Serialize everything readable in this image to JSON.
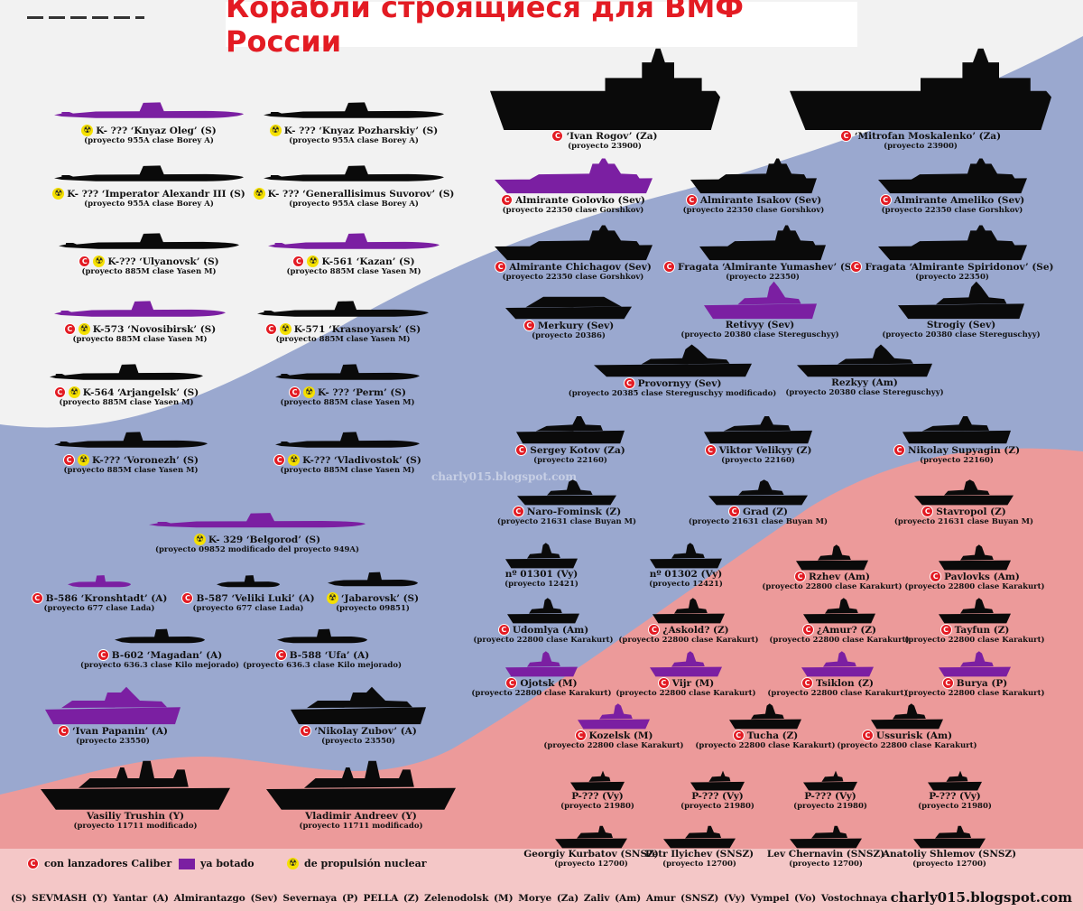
{
  "title": "Корабли строящиеся для ВМФ России",
  "watermark": "charly015.blogspot.com",
  "colors": {
    "title_red": "#e31b23",
    "launched_purple": "#7b1fa2",
    "built_black": "#0a0a0a",
    "flag_white": "#f2f2f2",
    "flag_blue": "#9aa8cf",
    "flag_red": "#ec9a9a"
  },
  "items": [
    {
      "name": "K- ??? ‘Knyaz Oleg’ (S)",
      "project": "(proyecto 955A clase Borey A)",
      "caliber": false,
      "nuclear": true,
      "launched": true,
      "shape": "sub"
    },
    {
      "name": "K- ??? ‘Knyaz Pozharskiy’ (S)",
      "project": "(proyecto 955A clase Borey A)",
      "caliber": false,
      "nuclear": true,
      "launched": false,
      "shape": "sub"
    },
    {
      "name": "K- ??? ‘Imperator Alexandr III (S)",
      "project": "(proyecto 955A clase Borey A)",
      "caliber": false,
      "nuclear": true,
      "launched": false,
      "shape": "sub"
    },
    {
      "name": "K- ??? ‘Generallisimus Suvorov’ (S)",
      "project": "(proyecto 955A clase Borey A)",
      "caliber": false,
      "nuclear": true,
      "launched": false,
      "shape": "sub"
    },
    {
      "name": "K-??? ‘Ulyanovsk’ (S)",
      "project": "(proyecto 885M clase Yasen M)",
      "caliber": true,
      "nuclear": true,
      "launched": false,
      "shape": "sub"
    },
    {
      "name": "K-561 ‘Kazan’ (S)",
      "project": "(proyecto 885M clase Yasen M)",
      "caliber": true,
      "nuclear": true,
      "launched": true,
      "shape": "sub"
    },
    {
      "name": "K-573 ‘Novosibirsk’ (S)",
      "project": "(proyecto 885M clase Yasen M)",
      "caliber": true,
      "nuclear": true,
      "launched": true,
      "shape": "sub"
    },
    {
      "name": "K-571 ‘Krasnoyarsk’ (S)",
      "project": "(proyecto 885M clase Yasen M)",
      "caliber": true,
      "nuclear": true,
      "launched": false,
      "shape": "sub"
    },
    {
      "name": "K-564 ‘Arjangelsk’ (S)",
      "project": "(proyecto 885M clase Yasen M)",
      "caliber": true,
      "nuclear": true,
      "launched": false,
      "shape": "sub"
    },
    {
      "name": "K- ??? ‘Perm’ (S)",
      "project": "(proyecto 885M clase Yasen M)",
      "caliber": true,
      "nuclear": true,
      "launched": false,
      "shape": "sub"
    },
    {
      "name": "K-??? ‘Voronezh’ (S)",
      "project": "(proyecto 885M clase Yasen M)",
      "caliber": true,
      "nuclear": true,
      "launched": false,
      "shape": "sub"
    },
    {
      "name": "K-??? ‘Vladivostok’ (S)",
      "project": "(proyecto 885M clase Yasen M)",
      "caliber": true,
      "nuclear": true,
      "launched": false,
      "shape": "sub"
    },
    {
      "name": "K- 329 ‘Belgorod’ (S)",
      "project": "(proyecto 09852 modificado del proyecto 949A)",
      "caliber": false,
      "nuclear": true,
      "launched": true,
      "shape": "sub"
    },
    {
      "name": "B-586 ‘Kronshtadt’ (A)",
      "project": "(proyecto 677 clase Lada)",
      "caliber": true,
      "nuclear": false,
      "launched": true,
      "shape": "ssk"
    },
    {
      "name": "B-587 ‘Veliki Luki’ (A)",
      "project": "(proyecto 677 clase Lada)",
      "caliber": true,
      "nuclear": false,
      "launched": false,
      "shape": "ssk"
    },
    {
      "name": "‘Jabarovsk’ (S)",
      "project": "(proyecto 09851)",
      "caliber": false,
      "nuclear": true,
      "launched": false,
      "shape": "ssk"
    },
    {
      "name": "B-602 ‘Magadan’ (A)",
      "project": "(proyecto 636.3 clase Kilo mejorado)",
      "caliber": true,
      "nuclear": false,
      "launched": false,
      "shape": "ssk"
    },
    {
      "name": "B-588 ‘Ufa’ (A)",
      "project": "(proyecto 636.3 clase Kilo mejorado)",
      "caliber": true,
      "nuclear": false,
      "launched": false,
      "shape": "ssk"
    },
    {
      "name": "‘Ivan Papanin’ (A)",
      "project": "(proyecto 23550)",
      "caliber": true,
      "nuclear": false,
      "launched": true,
      "shape": "patrol"
    },
    {
      "name": "‘Nikolay Zubov’ (A)",
      "project": "(proyecto 23550)",
      "caliber": true,
      "nuclear": false,
      "launched": false,
      "shape": "patrol"
    },
    {
      "name": "Vasiliy Trushin (Y)",
      "project": "(proyecto 11711 modificado)",
      "caliber": false,
      "nuclear": false,
      "launched": false,
      "shape": "lst"
    },
    {
      "name": "Vladimir Andreev (Y)",
      "project": "(proyecto 11711 modificado)",
      "caliber": false,
      "nuclear": false,
      "launched": false,
      "shape": "lst"
    },
    {
      "name": "‘Ivan Rogov’ (Za)",
      "project": "(proyecto 23900)",
      "caliber": true,
      "nuclear": false,
      "launched": false,
      "shape": "lhd"
    },
    {
      "name": "‘Mitrofan Moskalenko’ (Za)",
      "project": "(proyecto 23900)",
      "caliber": true,
      "nuclear": false,
      "launched": false,
      "shape": "lhd"
    },
    {
      "name": "Almirante Golovko (Sev)",
      "project": "(proyecto 22350 clase Gorshkov)",
      "caliber": true,
      "nuclear": false,
      "launched": true,
      "shape": "frigate"
    },
    {
      "name": "Almirante Isakov (Sev)",
      "project": "(proyecto 22350 clase Gorshkov)",
      "caliber": true,
      "nuclear": false,
      "launched": false,
      "shape": "frigate"
    },
    {
      "name": "Almirante Ameliko (Sev)",
      "project": "(proyecto 22350 clase Gorshkov)",
      "caliber": true,
      "nuclear": false,
      "launched": false,
      "shape": "frigate"
    },
    {
      "name": "Almirante Chichagov (Sev)",
      "project": "(proyecto 22350 clase Gorshkov)",
      "caliber": true,
      "nuclear": false,
      "launched": false,
      "shape": "frigate"
    },
    {
      "name": "Fragata ‘Almirante Yumashev’ (Se)",
      "project": "(proyecto 22350)",
      "caliber": true,
      "nuclear": false,
      "launched": false,
      "shape": "frigate"
    },
    {
      "name": "Fragata ‘Almirante Spiridonov’ (Se)",
      "project": "(proyecto 22350)",
      "caliber": true,
      "nuclear": false,
      "launched": false,
      "shape": "frigate"
    },
    {
      "name": "Merkury (Sev)",
      "project": "(proyecto 20386)",
      "caliber": true,
      "nuclear": false,
      "launched": false,
      "shape": "stealth"
    },
    {
      "name": "Retivyy (Sev)",
      "project": "(proyecto 20380 clase Stereguschyy)",
      "caliber": false,
      "nuclear": false,
      "launched": true,
      "shape": "corvette"
    },
    {
      "name": "Strogiy (Sev)",
      "project": "(proyecto 20380 clase Stereguschyy)",
      "caliber": false,
      "nuclear": false,
      "launched": false,
      "shape": "corvette"
    },
    {
      "name": "Provornyy (Sev)",
      "project": "(proyecto 20385 clase Stereguschyy modificado)",
      "caliber": true,
      "nuclear": false,
      "launched": false,
      "shape": "corvette"
    },
    {
      "name": "Rezkyy (Am)",
      "project": "(proyecto 20380 clase Stereguschyy)",
      "caliber": false,
      "nuclear": false,
      "launched": false,
      "shape": "corvette"
    },
    {
      "name": "Sergey Kotov (Za)",
      "project": "(proyecto 22160)",
      "caliber": true,
      "nuclear": false,
      "launched": false,
      "shape": "opv"
    },
    {
      "name": "Viktor Velikyy (Z)",
      "project": "(proyecto 22160)",
      "caliber": true,
      "nuclear": false,
      "launched": false,
      "shape": "opv"
    },
    {
      "name": "Nikolay Supyagin (Z)",
      "project": "(proyecto 22160)",
      "caliber": true,
      "nuclear": false,
      "launched": false,
      "shape": "opv"
    },
    {
      "name": "Naro-Fominsk (Z)",
      "project": "(proyecto 21631 clase Buyan M)",
      "caliber": true,
      "nuclear": false,
      "launched": false,
      "shape": "small"
    },
    {
      "name": "Grad (Z)",
      "project": "(proyecto 21631 clase Buyan M)",
      "caliber": true,
      "nuclear": false,
      "launched": false,
      "shape": "small"
    },
    {
      "name": "Stavropol (Z)",
      "project": "(proyecto 21631 clase Buyan M)",
      "caliber": true,
      "nuclear": false,
      "launched": false,
      "shape": "small"
    },
    {
      "name": "nº 01301 (Vy)",
      "project": "(proyecto 12421)",
      "caliber": false,
      "nuclear": false,
      "launched": false,
      "shape": "small"
    },
    {
      "name": "nº 01302 (Vy)",
      "project": "(proyecto 12421)",
      "caliber": false,
      "nuclear": false,
      "launched": false,
      "shape": "small"
    },
    {
      "name": "Rzhev (Am)",
      "project": "(proyecto 22800 clase Karakurt)",
      "caliber": true,
      "nuclear": false,
      "launched": false,
      "shape": "small"
    },
    {
      "name": "Pavlovks (Am)",
      "project": "(proyecto 22800 clase Karakurt)",
      "caliber": true,
      "nuclear": false,
      "launched": false,
      "shape": "small"
    },
    {
      "name": "Udomlya (Am)",
      "project": "(proyecto 22800 clase Karakurt)",
      "caliber": true,
      "nuclear": false,
      "launched": false,
      "shape": "small"
    },
    {
      "name": "¿Askold? (Z)",
      "project": "(proyecto 22800 clase Karakurt)",
      "caliber": true,
      "nuclear": false,
      "launched": false,
      "shape": "small"
    },
    {
      "name": "¿Amur? (Z)",
      "project": "(proyecto 22800 clase Karakurt)",
      "caliber": true,
      "nuclear": false,
      "launched": false,
      "shape": "small"
    },
    {
      "name": "Tayfun (Z)",
      "project": "(proyecto 22800 clase Karakurt)",
      "caliber": true,
      "nuclear": false,
      "launched": false,
      "shape": "small"
    },
    {
      "name": "Ojotsk (M)",
      "project": "(proyecto 22800 clase Karakurt)",
      "caliber": true,
      "nuclear": false,
      "launched": true,
      "shape": "small"
    },
    {
      "name": "Vijr (M)",
      "project": "(proyecto 22800 clase Karakurt)",
      "caliber": true,
      "nuclear": false,
      "launched": true,
      "shape": "small"
    },
    {
      "name": "Tsiklon (Z)",
      "project": "(proyecto 22800 clase Karakurt)",
      "caliber": true,
      "nuclear": false,
      "launched": true,
      "shape": "small"
    },
    {
      "name": "Burya (P)",
      "project": "(proyecto 22800 clase Karakurt)",
      "caliber": true,
      "nuclear": false,
      "launched": true,
      "shape": "small"
    },
    {
      "name": "Kozelsk (M)",
      "project": "(proyecto 22800 clase Karakurt)",
      "caliber": true,
      "nuclear": false,
      "launched": true,
      "shape": "small"
    },
    {
      "name": "Tucha (Z)",
      "project": "(proyecto 22800 clase Karakurt)",
      "caliber": true,
      "nuclear": false,
      "launched": false,
      "shape": "small"
    },
    {
      "name": "Ussurisk (Am)",
      "project": "(proyecto 22800 clase Karakurt)",
      "caliber": true,
      "nuclear": false,
      "launched": false,
      "shape": "small"
    },
    {
      "name": "P-??? (Vy)",
      "project": "(proyecto 21980)",
      "caliber": false,
      "nuclear": false,
      "launched": false,
      "shape": "boat"
    },
    {
      "name": "P-??? (Vy)",
      "project": "(proyecto 21980)",
      "caliber": false,
      "nuclear": false,
      "launched": false,
      "shape": "boat"
    },
    {
      "name": "P-??? (Vy)",
      "project": "(proyecto 21980)",
      "caliber": false,
      "nuclear": false,
      "launched": false,
      "shape": "boat"
    },
    {
      "name": "P-??? (Vy)",
      "project": "(proyecto 21980)",
      "caliber": false,
      "nuclear": false,
      "launched": false,
      "shape": "boat"
    },
    {
      "name": "Georgiy Kurbatov (SNSZ)",
      "project": "(proyecto 12700)",
      "caliber": false,
      "nuclear": false,
      "launched": false,
      "shape": "mine"
    },
    {
      "name": "Petr Ilyichev (SNSZ)",
      "project": "(proyecto 12700)",
      "caliber": false,
      "nuclear": false,
      "launched": false,
      "shape": "mine"
    },
    {
      "name": "Lev Chernavin (SNSZ)",
      "project": "(proyecto 12700)",
      "caliber": false,
      "nuclear": false,
      "launched": false,
      "shape": "mine"
    },
    {
      "name": "Anatoliy Shlemov (SNSZ)",
      "project": "(proyecto 12700)",
      "caliber": false,
      "nuclear": false,
      "launched": false,
      "shape": "mine"
    }
  ],
  "legend": {
    "caliber": "con lanzadores Caliber",
    "launched": "ya botado",
    "nuclear": "de propulsión nuclear"
  },
  "shipyards": "(S) SEVMASH   (Y) Yantar   (A) Almirantazgo   (Sev) Severnaya   (P) PELLA   (Z) Zelenodolsk   (M) Morye   (Za) Zaliv   (Am) Amur   (SNSZ)   (Vy) Vympel   (Vo) Vostochnaya",
  "site": "charly015.blogspot.com"
}
